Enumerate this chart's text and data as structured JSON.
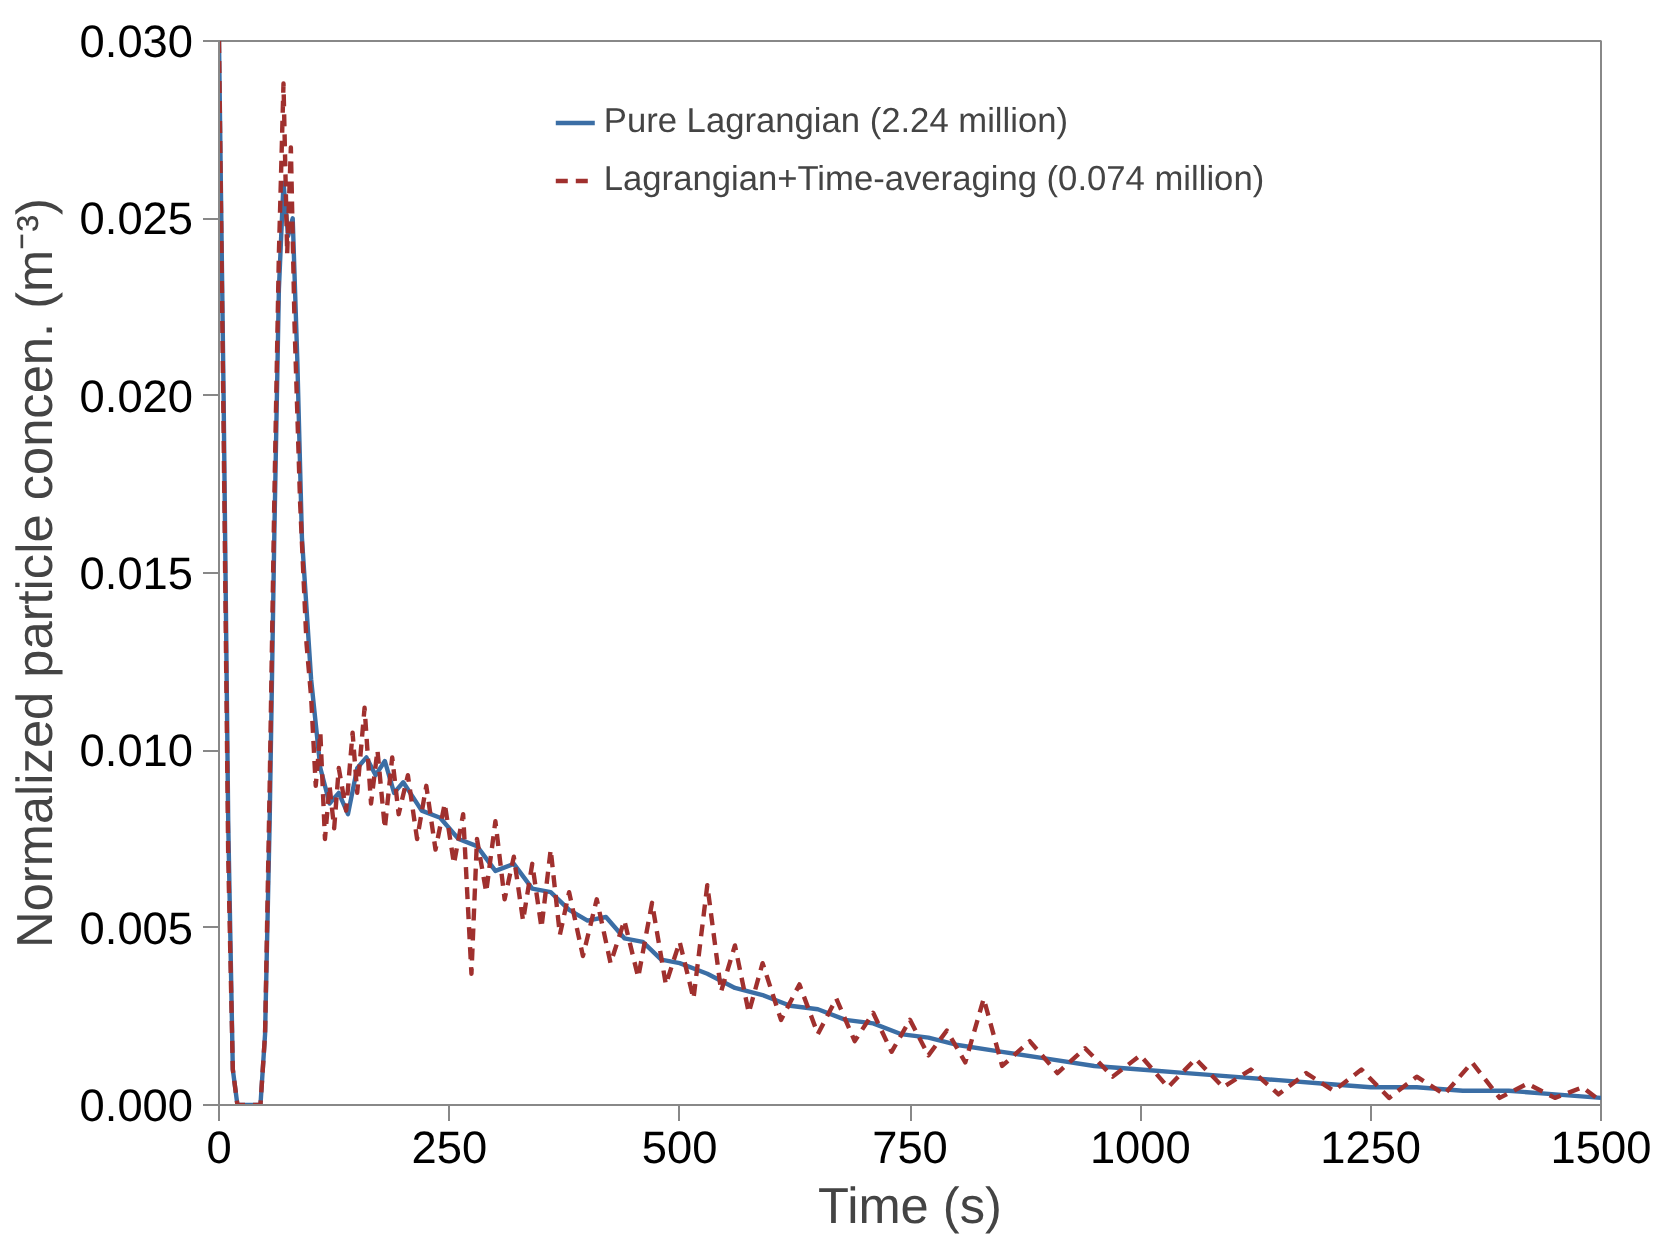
{
  "chart_data": {
    "type": "line",
    "xlabel": "Time (s)",
    "ylabel": "Normalized particle concen. (m⁻³)",
    "xlim": [
      0,
      1500
    ],
    "ylim": [
      0,
      0.03
    ],
    "xticks": [
      0,
      250,
      500,
      750,
      1000,
      1250,
      1500
    ],
    "yticks": [
      {
        "value": 0,
        "label": "0.000"
      },
      {
        "value": 0.005,
        "label": "0.005"
      },
      {
        "value": 0.01,
        "label": "0.010"
      },
      {
        "value": 0.015,
        "label": "0.015"
      },
      {
        "value": 0.02,
        "label": "0.020"
      },
      {
        "value": 0.025,
        "label": "0.025"
      },
      {
        "value": 0.03,
        "label": "0.030"
      }
    ],
    "grid": false,
    "legend": "top",
    "marker": "none",
    "series": [
      {
        "name": "Pure Lagrangian (2.24 million)",
        "color": "#3b6ea5",
        "line_style": "solid",
        "x": [
          0,
          5,
          10,
          15,
          20,
          45,
          50,
          55,
          60,
          65,
          70,
          75,
          80,
          85,
          90,
          100,
          110,
          120,
          130,
          140,
          150,
          160,
          170,
          180,
          190,
          200,
          220,
          240,
          260,
          280,
          300,
          320,
          340,
          360,
          380,
          400,
          420,
          440,
          460,
          480,
          500,
          530,
          560,
          590,
          620,
          650,
          680,
          710,
          740,
          770,
          800,
          850,
          900,
          950,
          1000,
          1050,
          1100,
          1150,
          1200,
          1250,
          1300,
          1350,
          1400,
          1450,
          1500
        ],
        "values": [
          0.03,
          0.02,
          0.008,
          0.001,
          0,
          0,
          0.002,
          0.008,
          0.016,
          0.023,
          0.026,
          0.0245,
          0.025,
          0.021,
          0.016,
          0.012,
          0.0095,
          0.0085,
          0.0088,
          0.0082,
          0.0095,
          0.0098,
          0.0093,
          0.0097,
          0.0088,
          0.0091,
          0.0083,
          0.0081,
          0.0075,
          0.0073,
          0.0066,
          0.0068,
          0.0061,
          0.006,
          0.0055,
          0.0052,
          0.0053,
          0.0047,
          0.0046,
          0.0041,
          0.004,
          0.0037,
          0.0033,
          0.0031,
          0.0028,
          0.0027,
          0.0024,
          0.0023,
          0.002,
          0.0019,
          0.0017,
          0.0015,
          0.0013,
          0.0011,
          0.001,
          0.0009,
          0.0008,
          0.0007,
          0.0006,
          0.0005,
          0.0005,
          0.0004,
          0.0004,
          0.0003,
          0.0002
        ]
      },
      {
        "name": "Lagrangian+Time-averaging (0.074 million)",
        "color": "#a0302e",
        "line_style": "dashed",
        "x": [
          0,
          5,
          10,
          15,
          20,
          45,
          50,
          55,
          60,
          65,
          70,
          74,
          78,
          82,
          88,
          95,
          100,
          105,
          110,
          115,
          120,
          125,
          130,
          138,
          145,
          150,
          158,
          165,
          172,
          180,
          188,
          195,
          205,
          215,
          225,
          235,
          245,
          255,
          265,
          274,
          280,
          290,
          300,
          310,
          320,
          330,
          340,
          350,
          360,
          370,
          380,
          395,
          410,
          425,
          440,
          455,
          470,
          485,
          500,
          515,
          530,
          545,
          560,
          575,
          590,
          610,
          630,
          650,
          670,
          690,
          710,
          730,
          750,
          770,
          790,
          810,
          830,
          850,
          880,
          910,
          940,
          970,
          1000,
          1030,
          1060,
          1090,
          1120,
          1150,
          1180,
          1210,
          1240,
          1270,
          1300,
          1330,
          1360,
          1390,
          1420,
          1450,
          1480,
          1500
        ],
        "values": [
          0.03,
          0.019,
          0.007,
          0.001,
          0,
          0,
          0.002,
          0.009,
          0.017,
          0.024,
          0.0288,
          0.024,
          0.027,
          0.022,
          0.017,
          0.013,
          0.0115,
          0.009,
          0.0105,
          0.0075,
          0.009,
          0.0078,
          0.0095,
          0.0083,
          0.0105,
          0.0088,
          0.0112,
          0.0085,
          0.01,
          0.0078,
          0.0098,
          0.0082,
          0.0093,
          0.0075,
          0.009,
          0.0072,
          0.0085,
          0.0068,
          0.0082,
          0.0037,
          0.0075,
          0.006,
          0.008,
          0.0058,
          0.007,
          0.0052,
          0.0068,
          0.005,
          0.0072,
          0.0048,
          0.006,
          0.0042,
          0.0058,
          0.004,
          0.0052,
          0.0036,
          0.0057,
          0.0034,
          0.0046,
          0.003,
          0.0062,
          0.0032,
          0.0045,
          0.0026,
          0.004,
          0.0024,
          0.0034,
          0.002,
          0.003,
          0.0018,
          0.0026,
          0.0015,
          0.0024,
          0.0014,
          0.0021,
          0.0012,
          0.003,
          0.0011,
          0.0018,
          0.0009,
          0.0016,
          0.0008,
          0.0014,
          0.0005,
          0.0013,
          0.0005,
          0.001,
          0.0003,
          0.0009,
          0.0004,
          0.001,
          0.0002,
          0.0008,
          0.0003,
          0.0012,
          0.0002,
          0.0006,
          0.0002,
          0.0005,
          0.0001
        ]
      }
    ]
  }
}
